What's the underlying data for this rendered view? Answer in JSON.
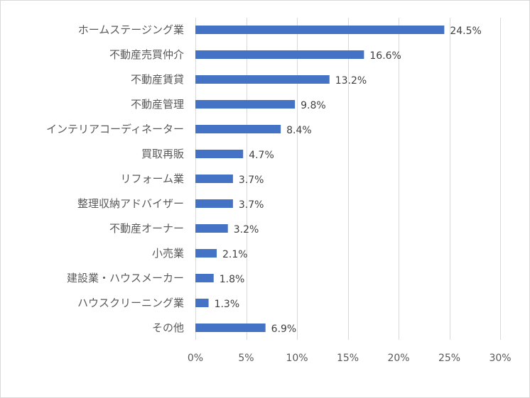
{
  "chart_data": {
    "type": "bar",
    "orientation": "horizontal",
    "categories": [
      "ホームステージング業",
      "不動産売買仲介",
      "不動産賃貸",
      "不動産管理",
      "インテリアコーディネーター",
      "買取再販",
      "リフォーム業",
      "整理収納アドバイザー",
      "不動産オーナー",
      "小売業",
      "建設業・ハウスメーカー",
      "ハウスクリーニング業",
      "その他"
    ],
    "values": [
      24.5,
      16.6,
      13.2,
      9.8,
      8.4,
      4.7,
      3.7,
      3.7,
      3.2,
      2.1,
      1.8,
      1.3,
      6.9
    ],
    "data_labels": [
      "24.5%",
      "16.6%",
      "13.2%",
      "9.8%",
      "8.4%",
      "4.7%",
      "3.7%",
      "3.7%",
      "3.2%",
      "2.1%",
      "1.8%",
      "1.3%",
      "6.9%"
    ],
    "xlim": [
      0,
      30
    ],
    "xticks": [
      0,
      5,
      10,
      15,
      20,
      25,
      30
    ],
    "xtick_labels": [
      "0%",
      "5%",
      "10%",
      "15%",
      "20%",
      "25%",
      "30%"
    ],
    "title": "",
    "xlabel": "",
    "ylabel": "",
    "grid": "vertical",
    "legend": "none",
    "bar_color": "#4472c4",
    "grid_color": "#d9d9d9"
  }
}
